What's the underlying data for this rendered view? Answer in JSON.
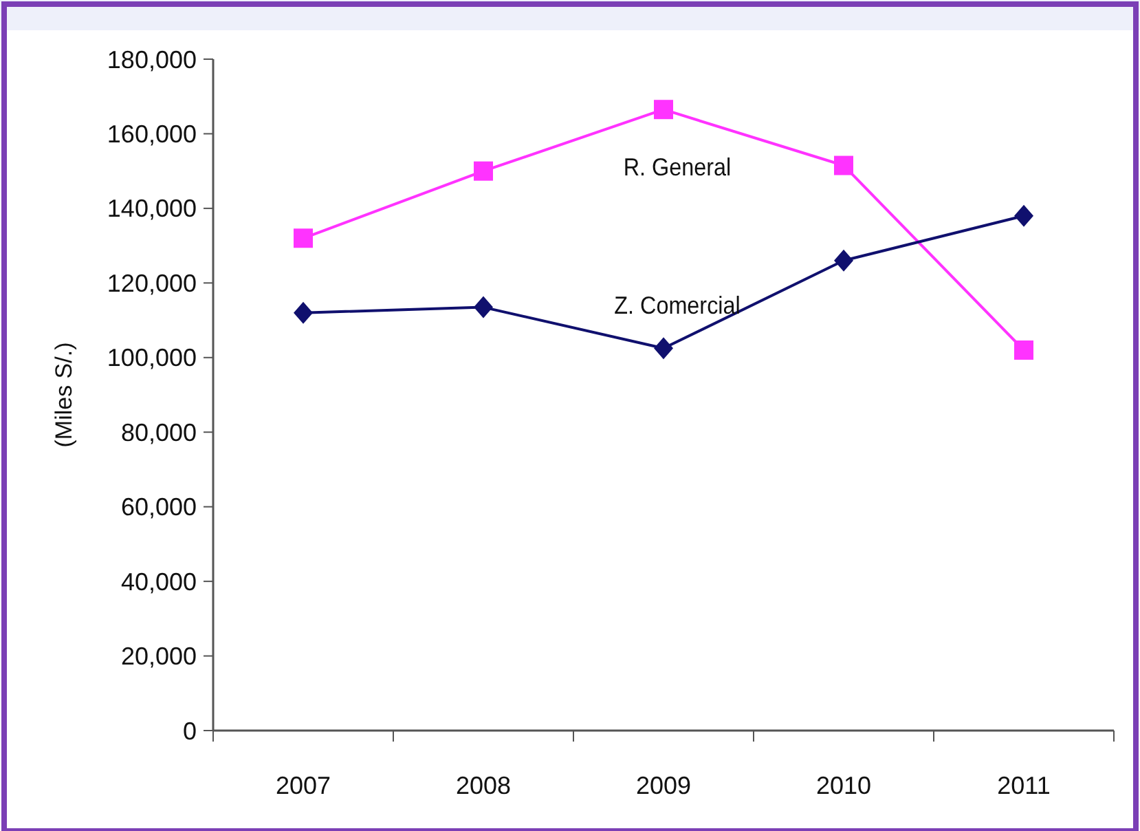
{
  "chart_data": {
    "type": "line",
    "ylabel": "(Miles S/.)",
    "categories": [
      "2007",
      "2008",
      "2009",
      "2010",
      "2011"
    ],
    "series": [
      {
        "name": "R. General",
        "color": "#ff33ff",
        "marker": "square",
        "values": [
          132000,
          150000,
          166500,
          151500,
          102000
        ]
      },
      {
        "name": "Z. Comercial",
        "color": "#10106e",
        "marker": "diamond",
        "values": [
          112000,
          113500,
          102500,
          126000,
          138000
        ]
      }
    ],
    "ylim": [
      0,
      180000
    ],
    "yticks": [
      {
        "value": 0,
        "label": "0"
      },
      {
        "value": 20000,
        "label": "20,000"
      },
      {
        "value": 40000,
        "label": "40,000"
      },
      {
        "value": 60000,
        "label": "60,000"
      },
      {
        "value": 80000,
        "label": "80,000"
      },
      {
        "value": 100000,
        "label": "100,000"
      },
      {
        "value": 120000,
        "label": "120,000"
      },
      {
        "value": 140000,
        "label": "140,000"
      },
      {
        "value": 160000,
        "label": "160,000"
      },
      {
        "value": 180000,
        "label": "180,000"
      }
    ],
    "grid": false,
    "legend": false
  }
}
